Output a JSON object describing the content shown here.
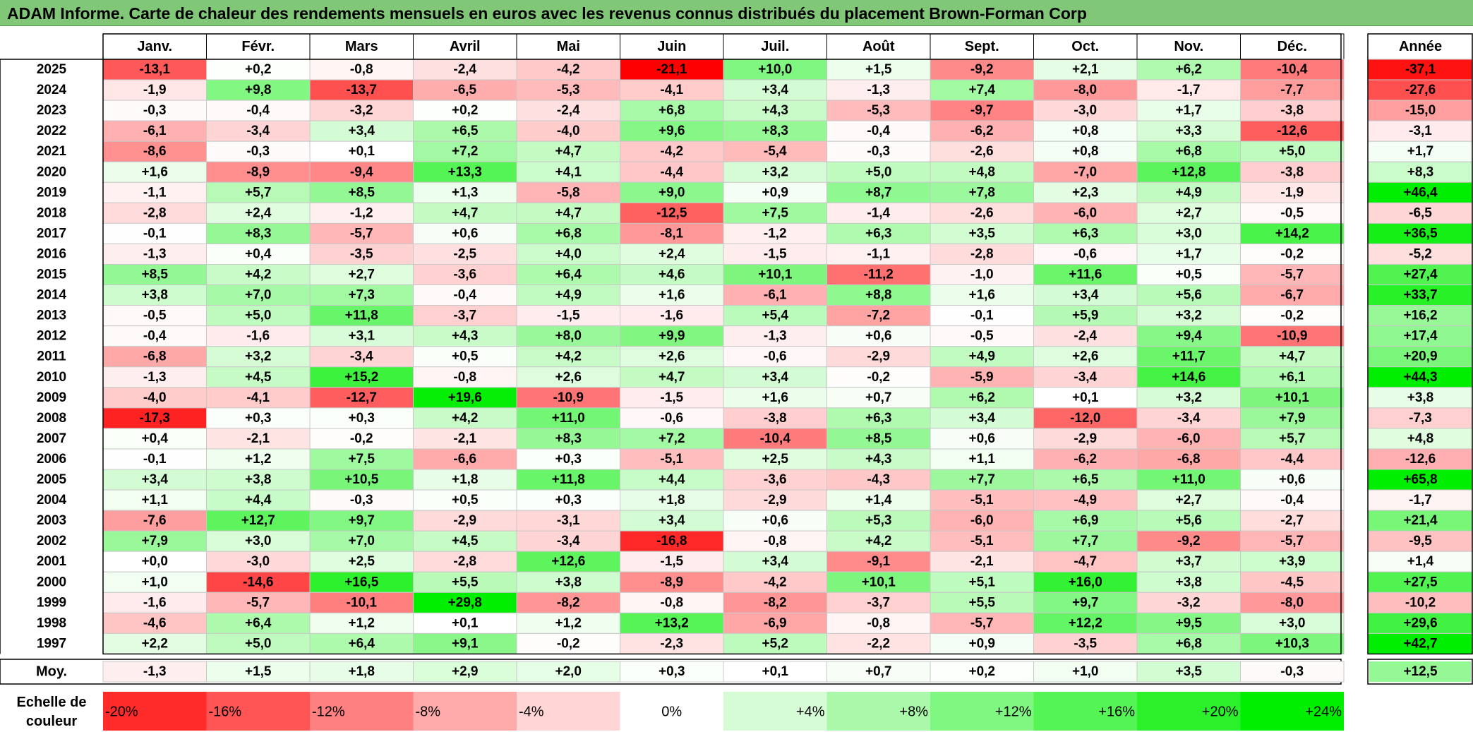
{
  "title": "ADAM Informe. Carte de chaleur des rendements mensuels en euros avec les revenus connus distribués du placement Brown-Forman Corp",
  "chart_data": {
    "type": "heatmap",
    "months": [
      "Janv.",
      "Févr.",
      "Mars",
      "Avril",
      "Mai",
      "Juin",
      "Juil.",
      "Août",
      "Sept.",
      "Oct.",
      "Nov.",
      "Déc."
    ],
    "year_header": "Année",
    "years": [
      "2025",
      "2024",
      "2023",
      "2022",
      "2021",
      "2020",
      "2019",
      "2018",
      "2017",
      "2016",
      "2015",
      "2014",
      "2013",
      "2012",
      "2011",
      "2010",
      "2009",
      "2008",
      "2007",
      "2006",
      "2005",
      "2004",
      "2003",
      "2002",
      "2001",
      "2000",
      "1999",
      "1998",
      "1997"
    ],
    "values": [
      [
        "-13,1",
        "+0,2",
        "-0,8",
        "-2,4",
        "-4,2",
        "-21,1",
        "+10,0",
        "+1,5",
        "-9,2",
        "+2,1",
        "+6,2",
        "-10,4"
      ],
      [
        "-1,9",
        "+9,8",
        "-13,7",
        "-6,5",
        "-5,3",
        "-4,1",
        "+3,4",
        "-1,3",
        "+7,4",
        "-8,0",
        "-1,7",
        "-7,7"
      ],
      [
        "-0,3",
        "-0,4",
        "-3,2",
        "+0,2",
        "-2,4",
        "+6,8",
        "+4,3",
        "-5,3",
        "-9,7",
        "-3,0",
        "+1,7",
        "-3,8"
      ],
      [
        "-6,1",
        "-3,4",
        "+3,4",
        "+6,5",
        "-4,0",
        "+9,6",
        "+8,3",
        "-0,4",
        "-6,2",
        "+0,8",
        "+3,3",
        "-12,6"
      ],
      [
        "-8,6",
        "-0,3",
        "+0,1",
        "+7,2",
        "+4,7",
        "-4,2",
        "-5,4",
        "-0,3",
        "-2,6",
        "+0,8",
        "+6,8",
        "+5,0"
      ],
      [
        "+1,6",
        "-8,9",
        "-9,4",
        "+13,3",
        "+4,1",
        "-4,4",
        "+3,2",
        "+5,0",
        "+4,8",
        "-7,0",
        "+12,8",
        "-3,8"
      ],
      [
        "-1,1",
        "+5,7",
        "+8,5",
        "+1,3",
        "-5,8",
        "+9,0",
        "+0,9",
        "+8,7",
        "+7,8",
        "+2,3",
        "+4,9",
        "-1,9"
      ],
      [
        "-2,8",
        "+2,4",
        "-1,2",
        "+4,7",
        "+4,7",
        "-12,5",
        "+7,5",
        "-1,4",
        "-2,6",
        "-6,0",
        "+2,7",
        "-0,5"
      ],
      [
        "-0,1",
        "+8,3",
        "-5,7",
        "+0,6",
        "+6,8",
        "-8,1",
        "-1,2",
        "+6,3",
        "+3,5",
        "+6,3",
        "+3,0",
        "+14,2"
      ],
      [
        "-1,3",
        "+0,4",
        "-3,5",
        "-2,5",
        "+4,0",
        "+2,4",
        "-1,5",
        "-1,1",
        "-2,8",
        "-0,6",
        "+1,7",
        "-0,2"
      ],
      [
        "+8,5",
        "+4,2",
        "+2,7",
        "-3,6",
        "+6,4",
        "+4,6",
        "+10,1",
        "-11,2",
        "-1,0",
        "+11,6",
        "+0,5",
        "-5,7"
      ],
      [
        "+3,8",
        "+7,0",
        "+7,3",
        "-0,4",
        "+4,9",
        "+1,6",
        "-6,1",
        "+8,8",
        "+1,6",
        "+3,4",
        "+5,6",
        "-6,7"
      ],
      [
        "-0,5",
        "+5,0",
        "+11,8",
        "-3,7",
        "-1,5",
        "-1,6",
        "+5,4",
        "-7,2",
        "-0,1",
        "+5,9",
        "+3,2",
        "-0,2"
      ],
      [
        "-0,4",
        "-1,6",
        "+3,1",
        "+4,3",
        "+8,0",
        "+9,9",
        "-1,3",
        "+0,6",
        "-0,5",
        "-2,4",
        "+9,4",
        "-10,9"
      ],
      [
        "-6,8",
        "+3,2",
        "-3,4",
        "+0,5",
        "+4,2",
        "+2,6",
        "-0,6",
        "-2,9",
        "+4,9",
        "+2,6",
        "+11,7",
        "+4,7"
      ],
      [
        "-1,3",
        "+4,5",
        "+15,2",
        "-0,8",
        "+2,6",
        "+4,7",
        "+3,4",
        "-0,2",
        "-5,9",
        "-3,4",
        "+14,6",
        "+6,1"
      ],
      [
        "-4,0",
        "-4,1",
        "-12,7",
        "+19,6",
        "-10,9",
        "-1,5",
        "+1,6",
        "+0,7",
        "+6,2",
        "+0,1",
        "+3,2",
        "+10,1"
      ],
      [
        "-17,3",
        "+0,3",
        "+0,3",
        "+4,2",
        "+11,0",
        "-0,6",
        "-3,8",
        "+6,3",
        "+3,4",
        "-12,0",
        "-3,4",
        "+7,9"
      ],
      [
        "+0,4",
        "-2,1",
        "-0,2",
        "-2,1",
        "+8,3",
        "+7,2",
        "-10,4",
        "+8,5",
        "+0,6",
        "-2,9",
        "-6,0",
        "+5,7"
      ],
      [
        "-0,1",
        "+1,2",
        "+7,5",
        "-6,6",
        "+0,3",
        "-5,1",
        "+2,5",
        "+4,3",
        "+1,1",
        "-6,2",
        "-6,8",
        "-4,4"
      ],
      [
        "+3,4",
        "+3,8",
        "+10,5",
        "+1,8",
        "+11,8",
        "+4,4",
        "-3,6",
        "-4,3",
        "+7,7",
        "+6,5",
        "+11,0",
        "+0,6"
      ],
      [
        "+1,1",
        "+4,4",
        "-0,3",
        "+0,5",
        "+0,3",
        "+1,8",
        "-2,9",
        "+1,4",
        "-5,1",
        "-4,9",
        "+2,7",
        "-0,4"
      ],
      [
        "-7,6",
        "+12,7",
        "+9,7",
        "-2,9",
        "-3,1",
        "+3,4",
        "+0,6",
        "+5,3",
        "-6,0",
        "+6,9",
        "+5,6",
        "-2,7"
      ],
      [
        "+7,9",
        "+3,0",
        "+7,0",
        "+4,5",
        "-3,4",
        "-16,8",
        "-0,8",
        "+4,2",
        "-5,1",
        "+7,7",
        "-9,2",
        "-5,7"
      ],
      [
        "+0,0",
        "-3,0",
        "+2,5",
        "-2,8",
        "+12,6",
        "-1,5",
        "+3,4",
        "-9,1",
        "-2,1",
        "-4,7",
        "+3,7",
        "+3,9"
      ],
      [
        "+1,0",
        "-14,6",
        "+16,5",
        "+5,5",
        "+3,8",
        "-8,9",
        "-4,2",
        "+10,1",
        "+5,1",
        "+16,0",
        "+3,8",
        "-4,5"
      ],
      [
        "-1,6",
        "-5,7",
        "-10,1",
        "+29,8",
        "-8,2",
        "-0,8",
        "-8,2",
        "-3,7",
        "+5,5",
        "+9,7",
        "-3,2",
        "-8,0"
      ],
      [
        "-4,6",
        "+6,4",
        "+1,2",
        "+0,1",
        "+1,2",
        "+13,2",
        "-6,9",
        "-0,8",
        "-5,7",
        "+12,2",
        "+9,5",
        "+3,0"
      ],
      [
        "+2,2",
        "+5,0",
        "+6,4",
        "+9,1",
        "-0,2",
        "-2,3",
        "+5,2",
        "-2,2",
        "+0,9",
        "-3,5",
        "+6,8",
        "+10,3"
      ]
    ],
    "annual": [
      "-37,1",
      "-27,6",
      "-15,0",
      "-3,1",
      "+1,7",
      "+8,3",
      "+46,4",
      "-6,5",
      "+36,5",
      "-5,2",
      "+27,4",
      "+33,7",
      "+16,2",
      "+17,4",
      "+20,9",
      "+44,3",
      "+3,8",
      "-7,3",
      "+4,8",
      "-12,6",
      "+65,8",
      "-1,7",
      "+21,4",
      "-9,5",
      "+1,4",
      "+27,5",
      "-10,2",
      "+29,6",
      "+42,7"
    ],
    "avg_label": "Moy.",
    "avg_values": [
      "-1,3",
      "+1,5",
      "+1,8",
      "+2,9",
      "+2,0",
      "+0,3",
      "+0,1",
      "+0,7",
      "+0,2",
      "+1,0",
      "+3,5",
      "-0,3"
    ],
    "avg_annual": "+12,5",
    "scale_label_line1": "Echelle de",
    "scale_label_line2": "couleur",
    "scale_labels": [
      "-20%",
      "-16%",
      "-12%",
      "-8%",
      "-4%",
      "0%",
      "+4%",
      "+8%",
      "+12%",
      "+16%",
      "+20%",
      "+24%"
    ],
    "scale_values": [
      -20,
      -16,
      -12,
      -8,
      -4,
      0,
      4,
      8,
      12,
      16,
      20,
      24
    ],
    "colors": {
      "neg_max": "#ff0000",
      "pos_max": "#00ee00",
      "neutral": "#ffffff",
      "title_bar": "#80c878"
    }
  }
}
